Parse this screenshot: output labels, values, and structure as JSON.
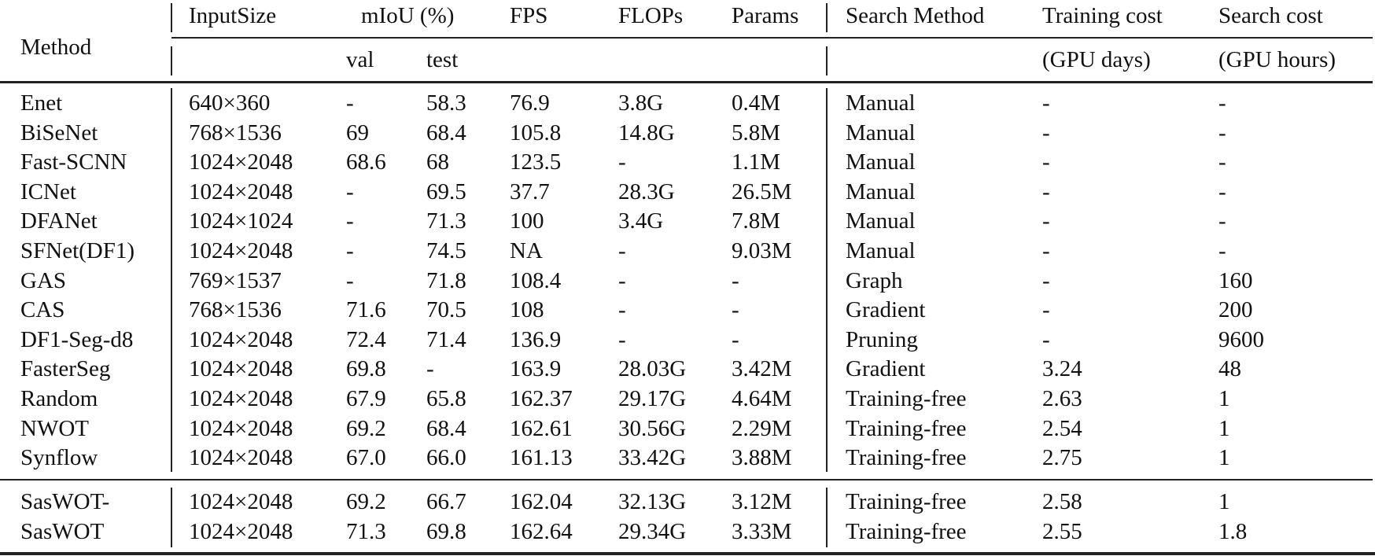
{
  "table": {
    "header": {
      "method": "Method",
      "input_size": "InputSize",
      "miou": "mIoU (%)",
      "miou_val": "val",
      "miou_test": "test",
      "fps": "FPS",
      "flops": "FLOPs",
      "params": "Params",
      "search_method": "Search Method",
      "training_cost": "Training cost",
      "training_cost_unit": "(GPU days)",
      "search_cost": "Search cost",
      "search_cost_unit": "(GPU hours)"
    },
    "rows": [
      {
        "method": "Enet",
        "input": "640×360",
        "val": "-",
        "test": "58.3",
        "fps": "76.9",
        "flops": "3.8G",
        "params": "0.4M",
        "search": "Manual",
        "train_cost": "-",
        "search_cost": "-"
      },
      {
        "method": "BiSeNet",
        "input": "768×1536",
        "val": "69",
        "test": "68.4",
        "fps": "105.8",
        "flops": "14.8G",
        "params": "5.8M",
        "search": "Manual",
        "train_cost": "-",
        "search_cost": "-"
      },
      {
        "method": "Fast-SCNN",
        "input": "1024×2048",
        "val": "68.6",
        "test": "68",
        "fps": "123.5",
        "flops": "-",
        "params": "1.1M",
        "search": "Manual",
        "train_cost": "-",
        "search_cost": "-"
      },
      {
        "method": "ICNet",
        "input": "1024×2048",
        "val": "-",
        "test": "69.5",
        "fps": "37.7",
        "flops": "28.3G",
        "params": "26.5M",
        "search": "Manual",
        "train_cost": "-",
        "search_cost": "-"
      },
      {
        "method": "DFANet",
        "input": "1024×1024",
        "val": "-",
        "test": "71.3",
        "fps": "100",
        "flops": "3.4G",
        "params": "7.8M",
        "search": "Manual",
        "train_cost": "-",
        "search_cost": "-"
      },
      {
        "method": "SFNet(DF1)",
        "input": "1024×2048",
        "val": "-",
        "test": "74.5",
        "fps": "NA",
        "flops": "-",
        "params": "9.03M",
        "search": "Manual",
        "train_cost": "-",
        "search_cost": "-"
      },
      {
        "method": "GAS",
        "input": "769×1537",
        "val": "-",
        "test": "71.8",
        "fps": "108.4",
        "flops": "-",
        "params": "-",
        "search": "Graph",
        "train_cost": "-",
        "search_cost": "160"
      },
      {
        "method": "CAS",
        "input": "768×1536",
        "val": "71.6",
        "test": "70.5",
        "fps": "108",
        "flops": "-",
        "params": "-",
        "search": "Gradient",
        "train_cost": "-",
        "search_cost": "200"
      },
      {
        "method": "DF1-Seg-d8",
        "input": "1024×2048",
        "val": "72.4",
        "test": "71.4",
        "fps": "136.9",
        "flops": "-",
        "params": "-",
        "search": "Pruning",
        "train_cost": "-",
        "search_cost": "9600"
      },
      {
        "method": "FasterSeg",
        "input": "1024×2048",
        "val": "69.8",
        "test": "-",
        "fps": "163.9",
        "flops": "28.03G",
        "params": "3.42M",
        "search": "Gradient",
        "train_cost": "3.24",
        "search_cost": "48"
      },
      {
        "method": "Random",
        "input": "1024×2048",
        "val": "67.9",
        "test": "65.8",
        "fps": "162.37",
        "flops": "29.17G",
        "params": "4.64M",
        "search": "Training-free",
        "train_cost": "2.63",
        "search_cost": "1"
      },
      {
        "method": "NWOT",
        "input": "1024×2048",
        "val": "69.2",
        "test": "68.4",
        "fps": "162.61",
        "flops": "30.56G",
        "params": "2.29M",
        "search": "Training-free",
        "train_cost": "2.54",
        "search_cost": "1"
      },
      {
        "method": "Synflow",
        "input": "1024×2048",
        "val": "67.0",
        "test": "66.0",
        "fps": "161.13",
        "flops": "33.42G",
        "params": "3.88M",
        "search": "Training-free",
        "train_cost": "2.75",
        "search_cost": "1"
      }
    ],
    "ours_rows": [
      {
        "method": "SasWOT-",
        "input": "1024×2048",
        "val": "69.2",
        "test": "66.7",
        "fps": "162.04",
        "flops": "32.13G",
        "params": "3.12M",
        "search": "Training-free",
        "train_cost": "2.58",
        "search_cost": "1"
      },
      {
        "method": "SasWOT",
        "input": "1024×2048",
        "val": "71.3",
        "test": "69.8",
        "fps": "162.64",
        "flops": "29.34G",
        "params": "3.33M",
        "search": "Training-free",
        "train_cost": "2.55",
        "search_cost": "1.8"
      }
    ]
  }
}
